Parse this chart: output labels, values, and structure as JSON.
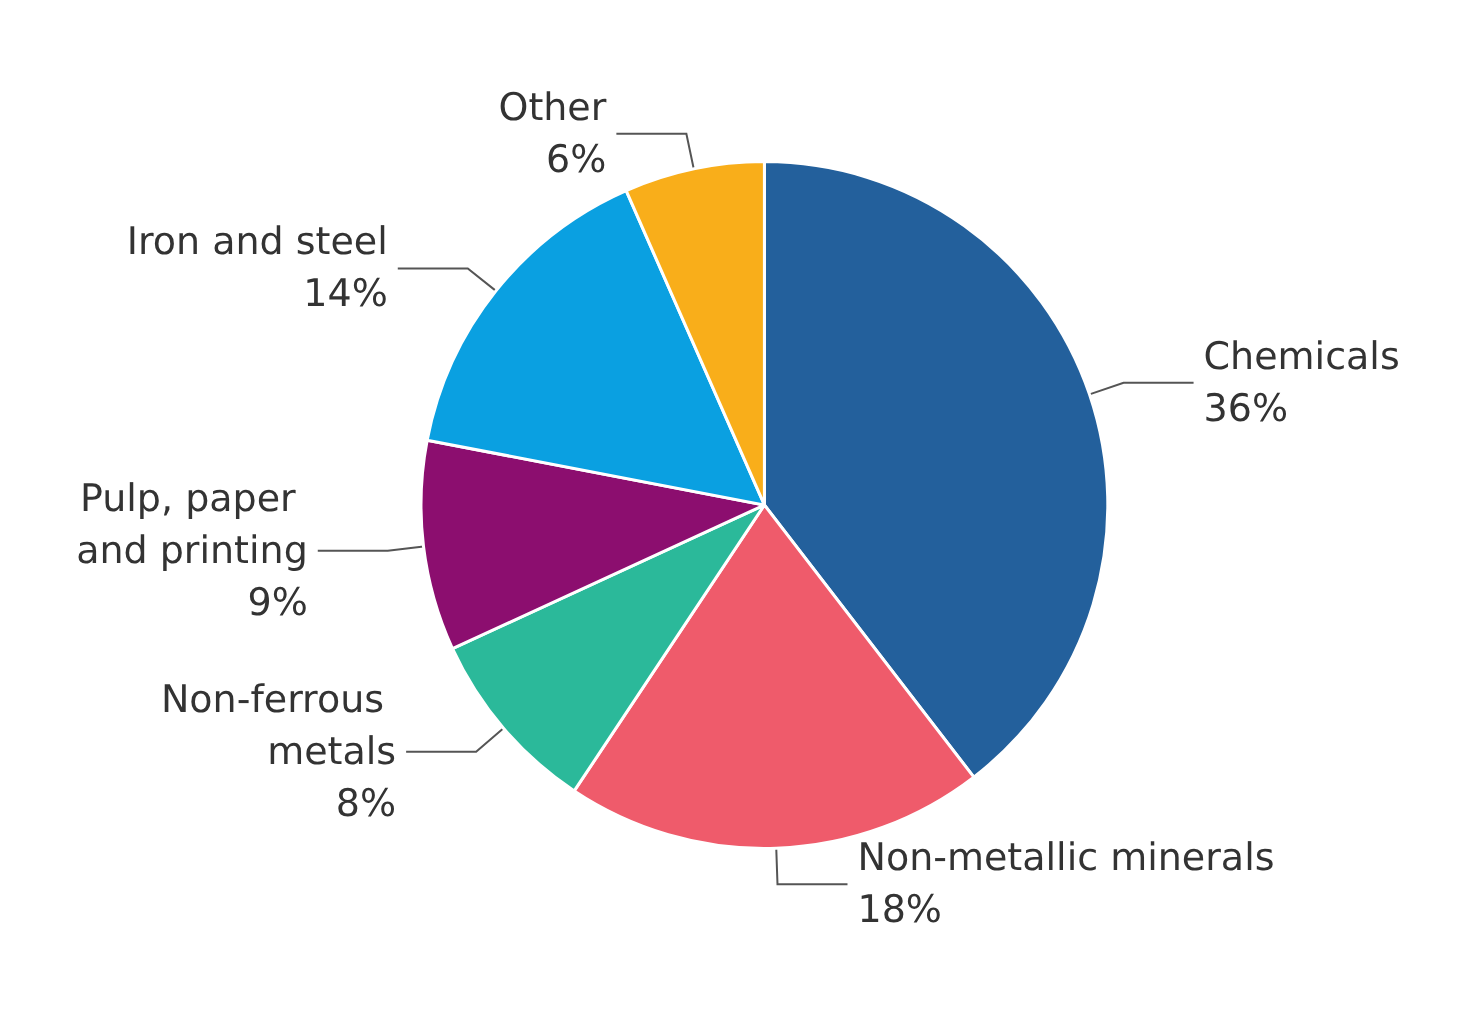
{
  "chart_data": {
    "type": "pie",
    "categories": [
      "Chemicals",
      "Non-metallic minerals",
      "Non-ferrous metals",
      "Pulp, paper and printing",
      "Iron and steel",
      "Other"
    ],
    "values": [
      36,
      18,
      8,
      9,
      14,
      6
    ],
    "colors": [
      "#23609c",
      "#ef5b6b",
      "#2bb99a",
      "#8c0e6f",
      "#0aa0e1",
      "#f9ae1a"
    ],
    "value_labels": [
      "36%",
      "18%",
      "8%",
      "9%",
      "14%",
      "6%"
    ],
    "legend": false
  }
}
